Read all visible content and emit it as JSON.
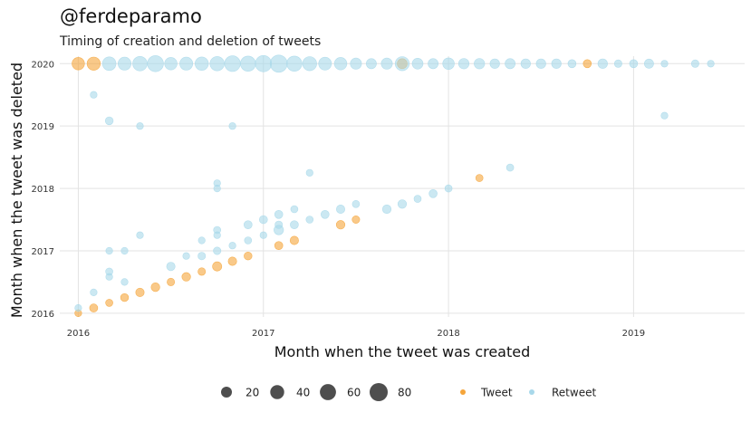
{
  "header": {
    "title": "@ferdeparamo",
    "subtitle": "Timing of creation and deletion of tweets"
  },
  "chart_data": {
    "type": "scatter",
    "title": "@ferdeparamo",
    "subtitle": "Timing of creation and deletion of tweets",
    "xlabel": "Month when the tweet was created",
    "ylabel": "Month when the tweet was deleted",
    "xlim": [
      2015.9,
      2019.6
    ],
    "ylim": [
      2015.94,
      2020.12
    ],
    "x_ticks": [
      "2016",
      "2017",
      "2018",
      "2019"
    ],
    "y_ticks": [
      "2016",
      "2017",
      "2018",
      "2019",
      "2020"
    ],
    "grid": true,
    "colors": {
      "Tweet": "#f5a53a",
      "Retweet": "#a8d8ea",
      "size_legend": "#222222"
    },
    "size_legend": {
      "values": [
        20,
        40,
        60,
        80
      ],
      "labels": [
        "20",
        "40",
        "60",
        "80"
      ]
    },
    "type_legend": {
      "entries": [
        "Tweet",
        "Retweet"
      ]
    },
    "series": [
      {
        "name": "Tweet",
        "points": [
          [
            2016.0,
            2020.0,
            30
          ],
          [
            2016.083,
            2020.0,
            35
          ],
          [
            2016.0,
            2016.0,
            4
          ],
          [
            2016.083,
            2016.083,
            8
          ],
          [
            2016.167,
            2016.167,
            5
          ],
          [
            2016.25,
            2016.25,
            7
          ],
          [
            2016.333,
            2016.333,
            9
          ],
          [
            2016.417,
            2016.417,
            10
          ],
          [
            2016.5,
            2016.5,
            6
          ],
          [
            2016.583,
            2016.583,
            10
          ],
          [
            2016.667,
            2016.667,
            6
          ],
          [
            2016.75,
            2016.75,
            12
          ],
          [
            2016.833,
            2016.833,
            9
          ],
          [
            2016.917,
            2016.917,
            7
          ],
          [
            2017.083,
            2017.083,
            8
          ],
          [
            2017.167,
            2017.167,
            9
          ],
          [
            2017.417,
            2017.417,
            10
          ],
          [
            2017.5,
            2017.5,
            6
          ],
          [
            2018.167,
            2018.167,
            5
          ],
          [
            2017.75,
            2020.0,
            15
          ],
          [
            2018.75,
            2020.0,
            8
          ]
        ]
      },
      {
        "name": "Retweet",
        "points": [
          [
            2016.167,
            2020.0,
            38
          ],
          [
            2016.25,
            2020.0,
            34
          ],
          [
            2016.333,
            2020.0,
            45
          ],
          [
            2016.417,
            2020.0,
            60
          ],
          [
            2016.5,
            2020.0,
            30
          ],
          [
            2016.583,
            2020.0,
            34
          ],
          [
            2016.667,
            2020.0,
            36
          ],
          [
            2016.75,
            2020.0,
            44
          ],
          [
            2016.833,
            2020.0,
            56
          ],
          [
            2016.917,
            2020.0,
            52
          ],
          [
            2017.0,
            2020.0,
            62
          ],
          [
            2017.083,
            2020.0,
            70
          ],
          [
            2017.167,
            2020.0,
            52
          ],
          [
            2017.25,
            2020.0,
            42
          ],
          [
            2017.333,
            2020.0,
            32
          ],
          [
            2017.417,
            2020.0,
            30
          ],
          [
            2017.5,
            2020.0,
            22
          ],
          [
            2017.583,
            2020.0,
            16
          ],
          [
            2017.667,
            2020.0,
            22
          ],
          [
            2017.75,
            2020.0,
            42
          ],
          [
            2017.833,
            2020.0,
            20
          ],
          [
            2017.917,
            2020.0,
            16
          ],
          [
            2018.0,
            2020.0,
            24
          ],
          [
            2018.083,
            2020.0,
            18
          ],
          [
            2018.167,
            2020.0,
            18
          ],
          [
            2018.25,
            2020.0,
            14
          ],
          [
            2018.333,
            2020.0,
            16
          ],
          [
            2018.417,
            2020.0,
            14
          ],
          [
            2018.5,
            2020.0,
            14
          ],
          [
            2018.583,
            2020.0,
            14
          ],
          [
            2018.667,
            2020.0,
            8
          ],
          [
            2018.833,
            2020.0,
            14
          ],
          [
            2018.917,
            2020.0,
            6
          ],
          [
            2019.0,
            2020.0,
            8
          ],
          [
            2019.083,
            2020.0,
            12
          ],
          [
            2019.167,
            2020.0,
            4
          ],
          [
            2019.333,
            2020.0,
            6
          ],
          [
            2019.417,
            2020.0,
            4
          ],
          [
            2016.083,
            2019.5,
            4
          ],
          [
            2016.167,
            2019.083,
            7
          ],
          [
            2016.333,
            2019.0,
            4
          ],
          [
            2016.833,
            2019.0,
            4
          ],
          [
            2019.167,
            2019.167,
            4
          ],
          [
            2017.25,
            2018.25,
            4
          ],
          [
            2018.333,
            2018.333,
            5
          ],
          [
            2016.75,
            2018.083,
            4
          ],
          [
            2016.75,
            2018.0,
            4
          ],
          [
            2016.0,
            2016.083,
            4
          ],
          [
            2016.083,
            2016.333,
            4
          ],
          [
            2016.167,
            2016.583,
            4
          ],
          [
            2016.167,
            2016.667,
            5
          ],
          [
            2016.167,
            2017.0,
            4
          ],
          [
            2016.25,
            2017.0,
            4
          ],
          [
            2016.25,
            2016.5,
            4
          ],
          [
            2016.333,
            2017.25,
            4
          ],
          [
            2016.5,
            2016.75,
            9
          ],
          [
            2016.583,
            2016.917,
            4
          ],
          [
            2016.667,
            2017.167,
            4
          ],
          [
            2016.75,
            2017.333,
            5
          ],
          [
            2016.75,
            2017.25,
            4
          ],
          [
            2016.75,
            2017.0,
            6
          ],
          [
            2016.833,
            2017.083,
            4
          ],
          [
            2016.917,
            2017.417,
            8
          ],
          [
            2017.0,
            2017.5,
            8
          ],
          [
            2017.0,
            2017.25,
            4
          ],
          [
            2017.083,
            2017.583,
            8
          ],
          [
            2017.083,
            2017.417,
            6
          ],
          [
            2017.083,
            2017.333,
            14
          ],
          [
            2017.167,
            2017.667,
            5
          ],
          [
            2017.167,
            2017.417,
            8
          ],
          [
            2017.25,
            2017.5,
            5
          ],
          [
            2017.333,
            2017.583,
            8
          ],
          [
            2017.417,
            2017.667,
            9
          ],
          [
            2017.5,
            2017.75,
            5
          ],
          [
            2017.667,
            2017.667,
            10
          ],
          [
            2017.75,
            2017.75,
            10
          ],
          [
            2017.833,
            2017.833,
            5
          ],
          [
            2017.917,
            2017.917,
            8
          ],
          [
            2018.0,
            2018.0,
            5
          ],
          [
            2016.917,
            2017.167,
            5
          ],
          [
            2016.667,
            2016.917,
            6
          ]
        ]
      }
    ]
  }
}
